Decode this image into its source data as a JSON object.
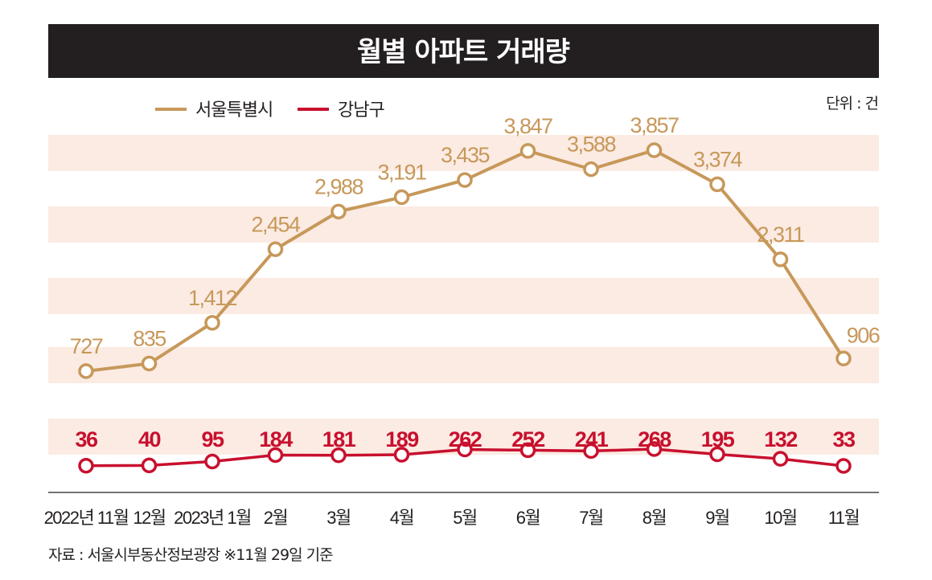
{
  "title": "월별 아파트 거래량",
  "unit_label": "단위 : 건",
  "source_note": "자료 : 서울시부동산정보광장 ※11월 29일 기준",
  "colors": {
    "title_bar": "#231f20",
    "band": "#fbebe3",
    "seoul": "#c7985a",
    "gangnam": "#c8102e",
    "axis": "#231f20"
  },
  "chart_data": {
    "type": "line",
    "categories": [
      "2022년 11월",
      "12월",
      "2023년 1월",
      "2월",
      "3월",
      "4월",
      "5월",
      "6월",
      "7월",
      "8월",
      "9월",
      "10월",
      "11월"
    ],
    "series": [
      {
        "name": "서울특별시",
        "values": [
          727,
          835,
          1412,
          2454,
          2988,
          3191,
          3435,
          3847,
          3588,
          3857,
          3374,
          2311,
          906
        ],
        "labels": [
          "727",
          "835",
          "1,412",
          "2,454",
          "2,988",
          "3,191",
          "3,435",
          "3,847",
          "3,588",
          "3,857",
          "3,374",
          "2,311",
          "906"
        ]
      },
      {
        "name": "강남구",
        "values": [
          36,
          40,
          95,
          184,
          181,
          189,
          262,
          252,
          241,
          268,
          195,
          132,
          33
        ],
        "labels": [
          "36",
          "40",
          "95",
          "184",
          "181",
          "189",
          "262",
          "252",
          "241",
          "268",
          "195",
          "132",
          "33"
        ]
      }
    ],
    "xlabel": "",
    "ylabel": "",
    "legend": "top-left",
    "grid": false
  }
}
